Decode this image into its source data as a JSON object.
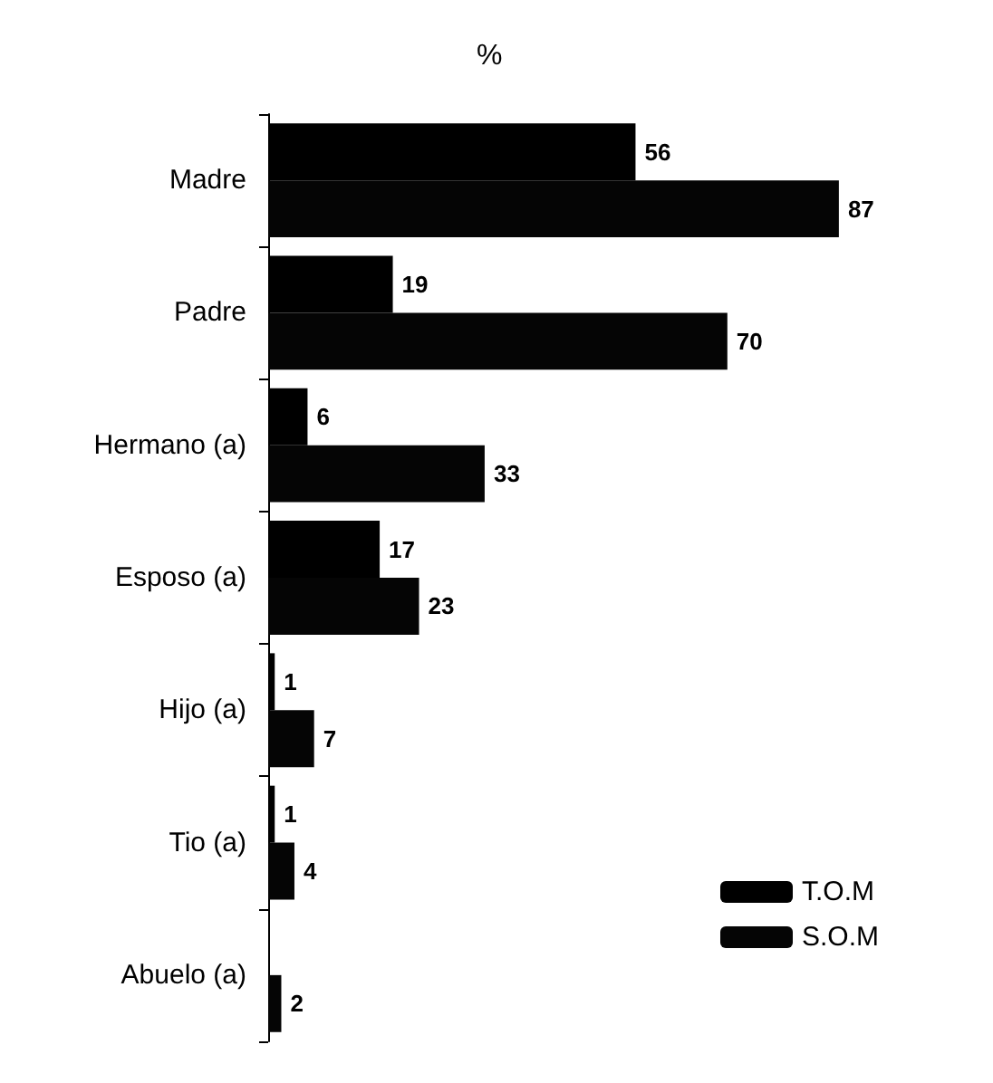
{
  "chart_data": {
    "type": "bar",
    "orientation": "horizontal",
    "title": "%",
    "categories": [
      "Madre",
      "Padre",
      "Hermano (a)",
      "Esposo (a)",
      "Hijo (a)",
      "Tio (a)",
      "Abuelo (a)"
    ],
    "series": [
      {
        "name": "T.O.M",
        "color": "#000000",
        "values": [
          56,
          19,
          6,
          17,
          1,
          1,
          null
        ]
      },
      {
        "name": "S.O.M",
        "color": "#050505",
        "values": [
          87,
          70,
          33,
          23,
          7,
          4,
          2
        ]
      }
    ],
    "data_labels": true,
    "legend": "bottom right"
  }
}
